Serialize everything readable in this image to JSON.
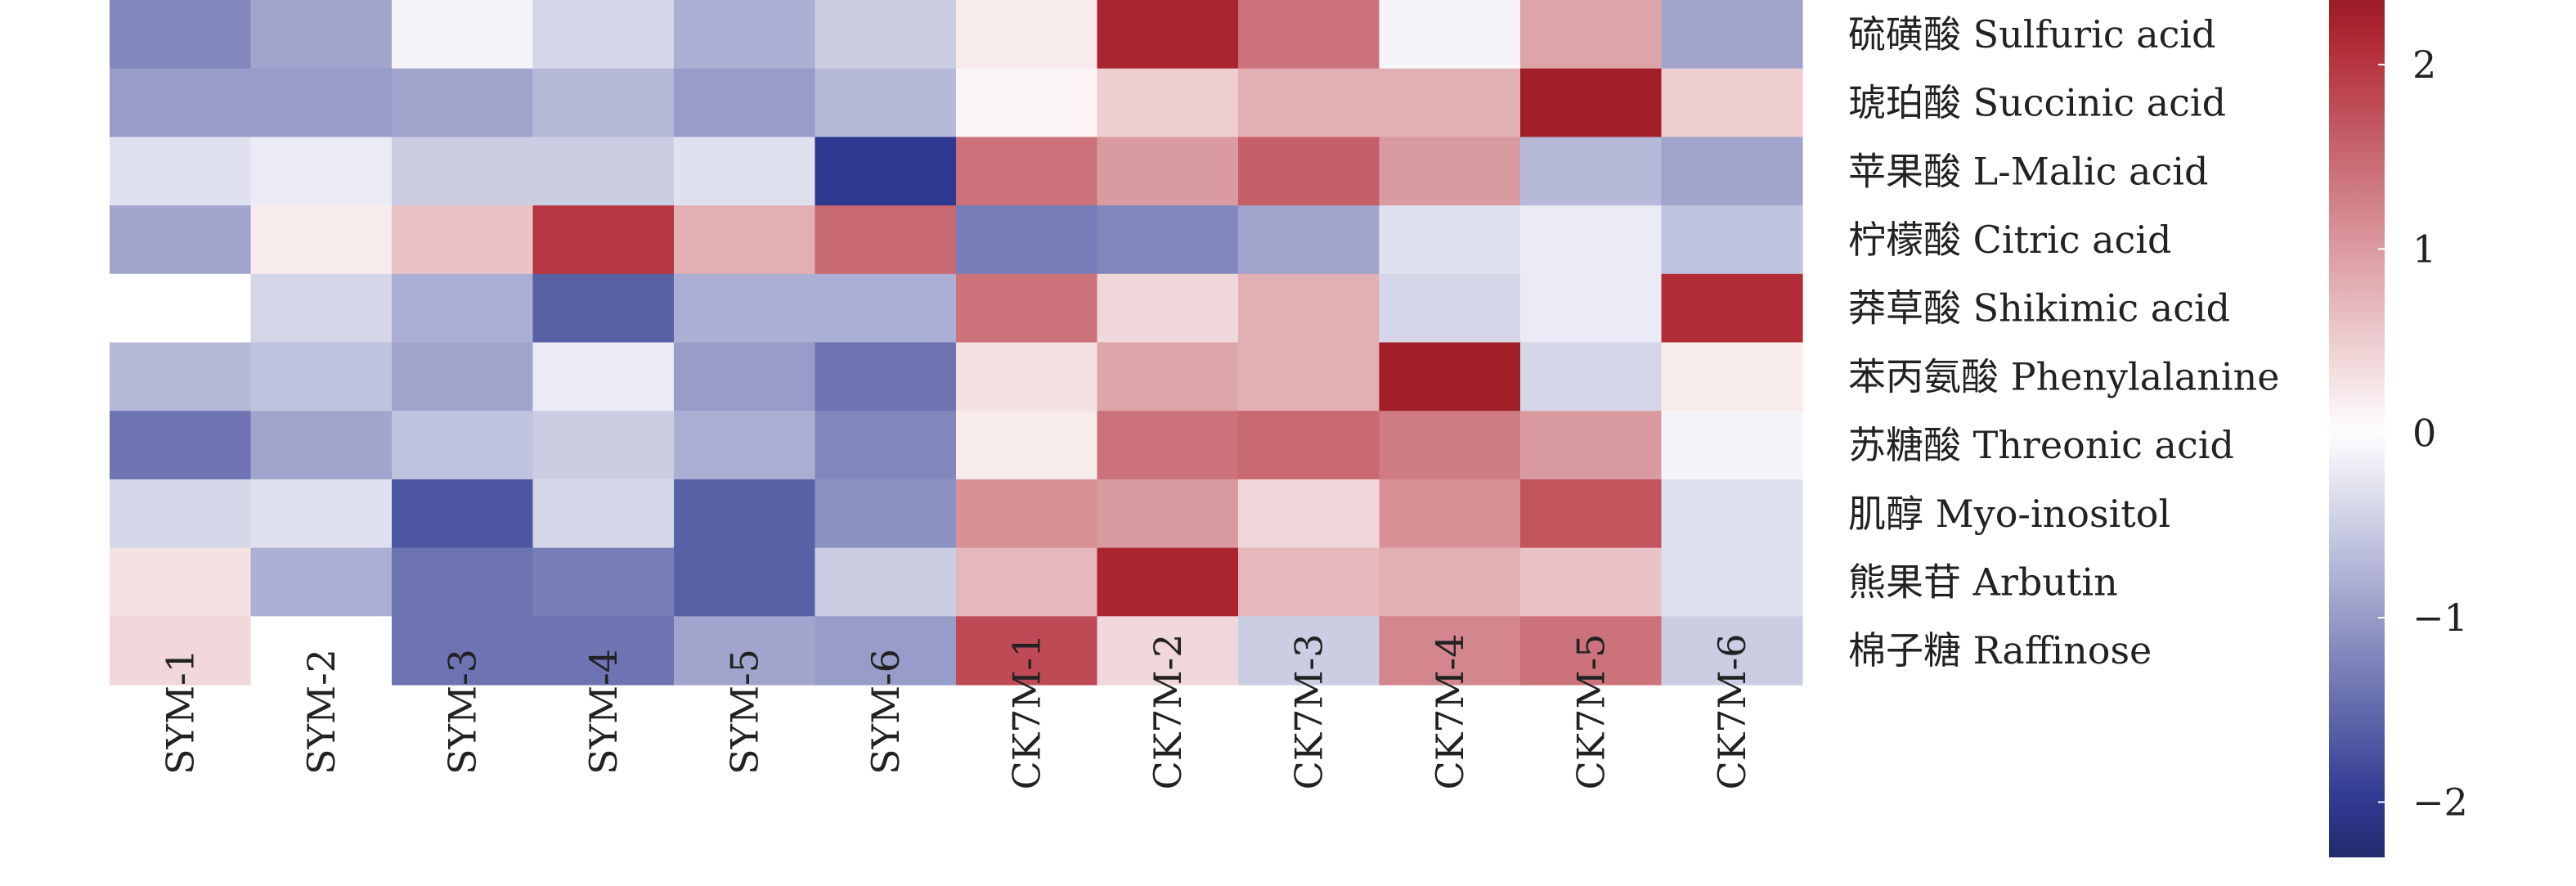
{
  "chart_data": {
    "type": "heatmap",
    "rows": [
      "硫磺酸 Sulfuric acid",
      "琥珀酸 Succinic acid",
      "苹果酸 L-Malic acid",
      "柠檬酸 Citric acid",
      "莽草酸 Shikimic acid",
      "苯丙氨酸 Phenylalanine",
      "苏糖酸 Threonic acid",
      "肌醇 Myo-inositol",
      "熊果苷 Arbutin",
      "棉子糖 Raffinose"
    ],
    "columns": [
      "SYM-1",
      "SYM-2",
      "SYM-3",
      "SYM-4",
      "SYM-5",
      "SYM-6",
      "CK7M-1",
      "CK7M-2",
      "CK7M-3",
      "CK7M-4",
      "CK7M-5",
      "CK7M-6"
    ],
    "values": [
      [
        -1.2,
        -0.9,
        -0.1,
        -0.4,
        -0.8,
        -0.5,
        0.2,
        2.2,
        1.4,
        -0.1,
        0.9,
        -0.9
      ],
      [
        -1.0,
        -1.0,
        -0.9,
        -0.7,
        -1.0,
        -0.7,
        0.1,
        0.5,
        0.8,
        0.8,
        2.3,
        0.5
      ],
      [
        -0.3,
        -0.2,
        -0.5,
        -0.5,
        -0.3,
        -2.0,
        1.4,
        1.0,
        1.6,
        1.0,
        -0.7,
        -0.9
      ],
      [
        -0.9,
        0.2,
        0.6,
        2.0,
        0.8,
        1.5,
        -1.3,
        -1.2,
        -0.9,
        -0.3,
        -0.2,
        -0.6
      ],
      [
        0.0,
        -0.4,
        -0.8,
        -1.6,
        -0.8,
        -0.8,
        1.4,
        0.4,
        0.8,
        -0.4,
        -0.2,
        2.1
      ],
      [
        -0.7,
        -0.6,
        -0.9,
        -0.2,
        -1.0,
        -1.4,
        0.3,
        0.9,
        0.8,
        2.3,
        -0.4,
        0.2
      ],
      [
        -1.4,
        -0.9,
        -0.6,
        -0.5,
        -0.8,
        -1.2,
        0.2,
        1.4,
        1.5,
        1.3,
        1.0,
        -0.1
      ],
      [
        -0.4,
        -0.3,
        -1.7,
        -0.4,
        -1.6,
        -1.1,
        1.1,
        1.0,
        0.4,
        1.1,
        1.7,
        -0.3
      ],
      [
        0.3,
        -0.8,
        -1.4,
        -1.3,
        -1.6,
        -0.5,
        0.7,
        2.2,
        0.7,
        0.8,
        0.6,
        -0.3
      ],
      [
        0.4,
        0.0,
        -1.4,
        -1.4,
        -0.9,
        -1.0,
        1.8,
        0.4,
        -0.5,
        1.2,
        1.4,
        -0.5
      ]
    ],
    "colorbar": {
      "ticks": [
        2,
        1,
        0,
        -1,
        -2
      ],
      "tick_labels": [
        "2",
        "1",
        "0",
        "−1",
        "−2"
      ],
      "range": [
        -2.3,
        2.35
      ],
      "colors": {
        "min": "#232b6b",
        "low": "#2e3890",
        "mid": "#ffffff",
        "high": "#b22c37",
        "max": "#9b1c26"
      }
    }
  }
}
